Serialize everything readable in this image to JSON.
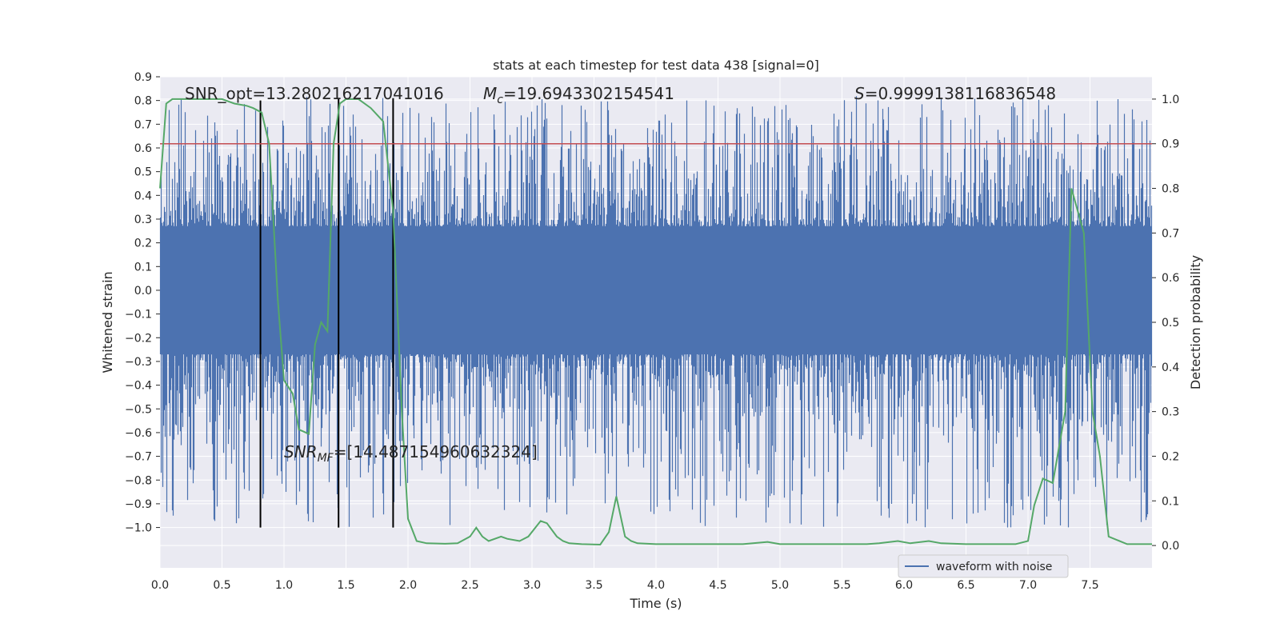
{
  "chart_data": {
    "type": "line",
    "title": "stats at each timestep for test data 438 [signal=0]",
    "xlabel": "Time (s)",
    "ylabel": "Whitened strain",
    "ylabel_right": "Detection probability",
    "xlim": [
      0,
      8
    ],
    "ylim": [
      -1.17,
      0.9
    ],
    "ylim_right": [
      -0.05,
      1.05
    ],
    "xticks": [
      0.0,
      0.5,
      1.0,
      1.5,
      2.0,
      2.5,
      3.0,
      3.5,
      4.0,
      4.5,
      5.0,
      5.5,
      6.0,
      6.5,
      7.0,
      7.5
    ],
    "xtick_labels": [
      "0.0",
      "0.5",
      "1.0",
      "1.5",
      "2.0",
      "2.5",
      "3.0",
      "3.5",
      "4.0",
      "4.5",
      "5.0",
      "5.5",
      "6.0",
      "6.5",
      "7.0",
      "7.5"
    ],
    "yticks": [
      -1.0,
      -0.9,
      -0.8,
      -0.7,
      -0.6,
      -0.5,
      -0.4,
      -0.3,
      -0.2,
      -0.1,
      0.0,
      0.1,
      0.2,
      0.3,
      0.4,
      0.5,
      0.6,
      0.7,
      0.8,
      0.9
    ],
    "ytick_labels": [
      "−1.0",
      "−0.9",
      "−0.8",
      "−0.7",
      "−0.6",
      "−0.5",
      "−0.4",
      "−0.3",
      "−0.2",
      "−0.1",
      "0.0",
      "0.1",
      "0.2",
      "0.3",
      "0.4",
      "0.5",
      "0.6",
      "0.7",
      "0.8",
      "0.9"
    ],
    "yticks_right": [
      0.0,
      0.1,
      0.2,
      0.3,
      0.4,
      0.5,
      0.6,
      0.7,
      0.8,
      0.9,
      1.0
    ],
    "ytick_labels_right": [
      "0.0",
      "0.1",
      "0.2",
      "0.3",
      "0.4",
      "0.5",
      "0.6",
      "0.7",
      "0.8",
      "0.9",
      "1.0"
    ],
    "grid": true,
    "legend_position": "lower-right",
    "colors": {
      "background": "#eaeaf2",
      "waveform": "#4c72b0",
      "probability": "#55a868",
      "threshold": "#c44e52",
      "markers": "#000000"
    },
    "series": [
      {
        "name": "waveform with noise",
        "axis": "left",
        "style": "dense-noise",
        "core_range": [
          -0.27,
          0.27
        ],
        "peak_range": [
          -1.0,
          0.82
        ]
      },
      {
        "axis": "right",
        "x": [
          0.0,
          0.05,
          0.1,
          0.2,
          0.3,
          0.4,
          0.5,
          0.6,
          0.7,
          0.75,
          0.82,
          0.88,
          0.95,
          1.0,
          1.07,
          1.12,
          1.2,
          1.25,
          1.3,
          1.35,
          1.4,
          1.45,
          1.5,
          1.55,
          1.6,
          1.7,
          1.8,
          1.88,
          1.95,
          2.0,
          2.07,
          2.15,
          2.3,
          2.4,
          2.5,
          2.55,
          2.6,
          2.65,
          2.75,
          2.8,
          2.9,
          2.97,
          3.07,
          3.12,
          3.2,
          3.25,
          3.3,
          3.4,
          3.55,
          3.62,
          3.68,
          3.75,
          3.8,
          3.85,
          4.0,
          4.2,
          4.5,
          4.7,
          4.9,
          5.0,
          5.2,
          5.5,
          5.7,
          5.8,
          5.95,
          6.05,
          6.2,
          6.3,
          6.5,
          6.7,
          6.9,
          7.0,
          7.05,
          7.12,
          7.2,
          7.3,
          7.35,
          7.45,
          7.52,
          7.58,
          7.65,
          7.8,
          8.0
        ],
        "values": [
          0.8,
          0.99,
          1.0,
          1.0,
          1.0,
          1.0,
          1.0,
          0.99,
          0.985,
          0.98,
          0.97,
          0.9,
          0.55,
          0.37,
          0.34,
          0.26,
          0.25,
          0.45,
          0.5,
          0.48,
          0.9,
          0.99,
          1.0,
          1.0,
          1.0,
          0.98,
          0.95,
          0.75,
          0.3,
          0.06,
          0.01,
          0.005,
          0.004,
          0.005,
          0.02,
          0.04,
          0.02,
          0.01,
          0.02,
          0.015,
          0.01,
          0.02,
          0.055,
          0.05,
          0.02,
          0.01,
          0.005,
          0.003,
          0.002,
          0.03,
          0.11,
          0.02,
          0.01,
          0.005,
          0.003,
          0.003,
          0.003,
          0.003,
          0.008,
          0.003,
          0.003,
          0.003,
          0.003,
          0.005,
          0.01,
          0.005,
          0.01,
          0.005,
          0.003,
          0.003,
          0.003,
          0.01,
          0.09,
          0.15,
          0.14,
          0.3,
          0.8,
          0.7,
          0.3,
          0.2,
          0.02,
          0.003,
          0.003
        ]
      }
    ],
    "threshold": {
      "axis": "right",
      "value": 0.9
    },
    "vertical_lines": [
      {
        "x": 0.81,
        "y_from": -1.0,
        "y_to": 0.8
      },
      {
        "x": 1.44,
        "y_from": -1.0,
        "y_to": 0.81
      },
      {
        "x": 1.88,
        "y_from": -1.0,
        "y_to": 0.81
      }
    ],
    "annotations": {
      "snr_opt": "SNR_opt=13.280216217041016",
      "mc_symbol": "M",
      "mc_sub": "c",
      "mc_value": "=19.6943302154541",
      "s_symbol": "S",
      "s_value": "=0.9999138116836548",
      "snr_mf_symbol": "SNR",
      "snr_mf_sub": "MF",
      "snr_mf_value": "=[14.487154960632324]"
    },
    "legend": {
      "label": "waveform with noise"
    }
  }
}
